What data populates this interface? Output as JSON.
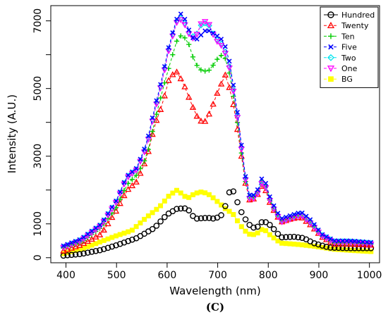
{
  "chart_data": {
    "type": "scatter",
    "xlabel": "Wavelength (nm)",
    "ylabel": "Intensity (A.U.)",
    "caption": "(C)",
    "xlim": [
      370,
      1020
    ],
    "ylim": [
      -150,
      7450
    ],
    "xticks": [
      400,
      500,
      600,
      700,
      800,
      900,
      1000
    ],
    "yticks": [
      0,
      1000,
      3000,
      5000,
      7000
    ],
    "grid": false,
    "legend_position": "top-right",
    "x_step_nm": 8,
    "series": [
      {
        "name": "Hundred",
        "color": "#000000",
        "marker": "circle",
        "points": [
          [
            395,
            60
          ],
          [
            430,
            110
          ],
          [
            470,
            230
          ],
          [
            500,
            370
          ],
          [
            540,
            580
          ],
          [
            575,
            880
          ],
          [
            600,
            1280
          ],
          [
            620,
            1450
          ],
          [
            640,
            1460
          ],
          [
            655,
            1150
          ],
          [
            680,
            1180
          ],
          [
            695,
            1150
          ],
          [
            712,
            1300
          ],
          [
            720,
            1900
          ],
          [
            730,
            2000
          ],
          [
            745,
            1400
          ],
          [
            760,
            1000
          ],
          [
            775,
            850
          ],
          [
            790,
            1100
          ],
          [
            805,
            950
          ],
          [
            825,
            600
          ],
          [
            850,
            620
          ],
          [
            870,
            580
          ],
          [
            890,
            430
          ],
          [
            920,
            300
          ],
          [
            960,
            280
          ],
          [
            1005,
            280
          ]
        ]
      },
      {
        "name": "Twenty",
        "color": "#ff0000",
        "marker": "triangle-up",
        "points": [
          [
            395,
            200
          ],
          [
            430,
            380
          ],
          [
            470,
            700
          ],
          [
            500,
            1400
          ],
          [
            520,
            1980
          ],
          [
            540,
            2250
          ],
          [
            560,
            2950
          ],
          [
            575,
            3900
          ],
          [
            590,
            4500
          ],
          [
            605,
            5350
          ],
          [
            620,
            5500
          ],
          [
            635,
            5050
          ],
          [
            648,
            4550
          ],
          [
            658,
            4200
          ],
          [
            672,
            3950
          ],
          [
            685,
            4300
          ],
          [
            700,
            4900
          ],
          [
            715,
            5400
          ],
          [
            728,
            4800
          ],
          [
            740,
            3700
          ],
          [
            750,
            2700
          ],
          [
            760,
            1700
          ],
          [
            775,
            1750
          ],
          [
            790,
            2200
          ],
          [
            805,
            1550
          ],
          [
            825,
            1050
          ],
          [
            845,
            1150
          ],
          [
            865,
            1200
          ],
          [
            885,
            950
          ],
          [
            905,
            620
          ],
          [
            930,
            400
          ],
          [
            960,
            400
          ],
          [
            1005,
            370
          ]
        ]
      },
      {
        "name": "Ten",
        "color": "#00cc00",
        "marker": "plus",
        "points": [
          [
            395,
            280
          ],
          [
            430,
            450
          ],
          [
            470,
            900
          ],
          [
            500,
            1500
          ],
          [
            520,
            2150
          ],
          [
            540,
            2450
          ],
          [
            560,
            3000
          ],
          [
            575,
            4000
          ],
          [
            590,
            4900
          ],
          [
            605,
            5700
          ],
          [
            620,
            6450
          ],
          [
            630,
            6600
          ],
          [
            642,
            6350
          ],
          [
            655,
            5750
          ],
          [
            670,
            5500
          ],
          [
            685,
            5550
          ],
          [
            698,
            5850
          ],
          [
            712,
            6050
          ],
          [
            725,
            5350
          ],
          [
            740,
            3900
          ],
          [
            750,
            2750
          ],
          [
            760,
            1750
          ],
          [
            775,
            1800
          ],
          [
            790,
            2350
          ],
          [
            805,
            1600
          ],
          [
            825,
            1050
          ],
          [
            845,
            1150
          ],
          [
            865,
            1250
          ],
          [
            885,
            1000
          ],
          [
            905,
            650
          ],
          [
            930,
            420
          ],
          [
            960,
            420
          ],
          [
            1005,
            400
          ]
        ]
      },
      {
        "name": "Five",
        "color": "#0000ff",
        "marker": "x",
        "points": [
          [
            395,
            350
          ],
          [
            430,
            550
          ],
          [
            470,
            1000
          ],
          [
            500,
            1700
          ],
          [
            520,
            2400
          ],
          [
            540,
            2650
          ],
          [
            560,
            3400
          ],
          [
            575,
            4400
          ],
          [
            590,
            5300
          ],
          [
            605,
            6350
          ],
          [
            620,
            7100
          ],
          [
            630,
            7250
          ],
          [
            645,
            6650
          ],
          [
            655,
            6400
          ],
          [
            665,
            6550
          ],
          [
            678,
            6750
          ],
          [
            695,
            6600
          ],
          [
            712,
            6400
          ],
          [
            725,
            5700
          ],
          [
            740,
            4200
          ],
          [
            750,
            2950
          ],
          [
            760,
            1850
          ],
          [
            775,
            1850
          ],
          [
            790,
            2450
          ],
          [
            805,
            1700
          ],
          [
            825,
            1150
          ],
          [
            845,
            1250
          ],
          [
            865,
            1350
          ],
          [
            885,
            1100
          ],
          [
            905,
            700
          ],
          [
            930,
            500
          ],
          [
            960,
            500
          ],
          [
            1005,
            450
          ]
        ]
      },
      {
        "name": "Two",
        "color": "#00e5ee",
        "marker": "diamond",
        "points": [
          [
            395,
            320
          ],
          [
            430,
            530
          ],
          [
            470,
            980
          ],
          [
            500,
            1680
          ],
          [
            520,
            2380
          ],
          [
            540,
            2620
          ],
          [
            560,
            3350
          ],
          [
            575,
            4350
          ],
          [
            590,
            5250
          ],
          [
            605,
            6300
          ],
          [
            620,
            7050
          ],
          [
            630,
            7100
          ],
          [
            645,
            6600
          ],
          [
            655,
            6500
          ],
          [
            668,
            6900
          ],
          [
            680,
            6950
          ],
          [
            695,
            6500
          ],
          [
            712,
            6250
          ],
          [
            725,
            5550
          ],
          [
            740,
            4100
          ],
          [
            750,
            2900
          ],
          [
            760,
            1800
          ],
          [
            775,
            1800
          ],
          [
            790,
            2350
          ],
          [
            805,
            1650
          ],
          [
            825,
            1100
          ],
          [
            845,
            1200
          ],
          [
            865,
            1300
          ],
          [
            885,
            1050
          ],
          [
            905,
            680
          ],
          [
            930,
            480
          ],
          [
            960,
            480
          ],
          [
            1005,
            430
          ]
        ]
      },
      {
        "name": "One",
        "color": "#ff00ff",
        "marker": "triangle-down",
        "points": [
          [
            395,
            300
          ],
          [
            430,
            500
          ],
          [
            470,
            950
          ],
          [
            500,
            1650
          ],
          [
            520,
            2350
          ],
          [
            540,
            2600
          ],
          [
            560,
            3300
          ],
          [
            575,
            4300
          ],
          [
            590,
            5200
          ],
          [
            605,
            6250
          ],
          [
            620,
            7000
          ],
          [
            630,
            7050
          ],
          [
            645,
            6550
          ],
          [
            655,
            6450
          ],
          [
            668,
            6950
          ],
          [
            680,
            7000
          ],
          [
            695,
            6450
          ],
          [
            712,
            6200
          ],
          [
            725,
            5500
          ],
          [
            740,
            4050
          ],
          [
            750,
            2850
          ],
          [
            760,
            1750
          ],
          [
            775,
            1750
          ],
          [
            790,
            2300
          ],
          [
            805,
            1600
          ],
          [
            825,
            1050
          ],
          [
            845,
            1150
          ],
          [
            865,
            1250
          ],
          [
            885,
            1000
          ],
          [
            905,
            650
          ],
          [
            930,
            450
          ],
          [
            960,
            450
          ],
          [
            1005,
            400
          ]
        ]
      },
      {
        "name": "BG",
        "color": "#ffff00",
        "marker": "square",
        "points": [
          [
            395,
            120
          ],
          [
            430,
            250
          ],
          [
            470,
            480
          ],
          [
            500,
            650
          ],
          [
            530,
            800
          ],
          [
            560,
            1200
          ],
          [
            585,
            1500
          ],
          [
            605,
            1850
          ],
          [
            620,
            2000
          ],
          [
            640,
            1750
          ],
          [
            655,
            1900
          ],
          [
            670,
            1950
          ],
          [
            685,
            1850
          ],
          [
            700,
            1650
          ],
          [
            715,
            1450
          ],
          [
            730,
            1300
          ],
          [
            745,
            950
          ],
          [
            760,
            700
          ],
          [
            775,
            680
          ],
          [
            790,
            870
          ],
          [
            805,
            650
          ],
          [
            825,
            430
          ],
          [
            860,
            390
          ],
          [
            890,
            340
          ],
          [
            930,
            250
          ],
          [
            970,
            210
          ],
          [
            1005,
            180
          ]
        ]
      }
    ]
  }
}
